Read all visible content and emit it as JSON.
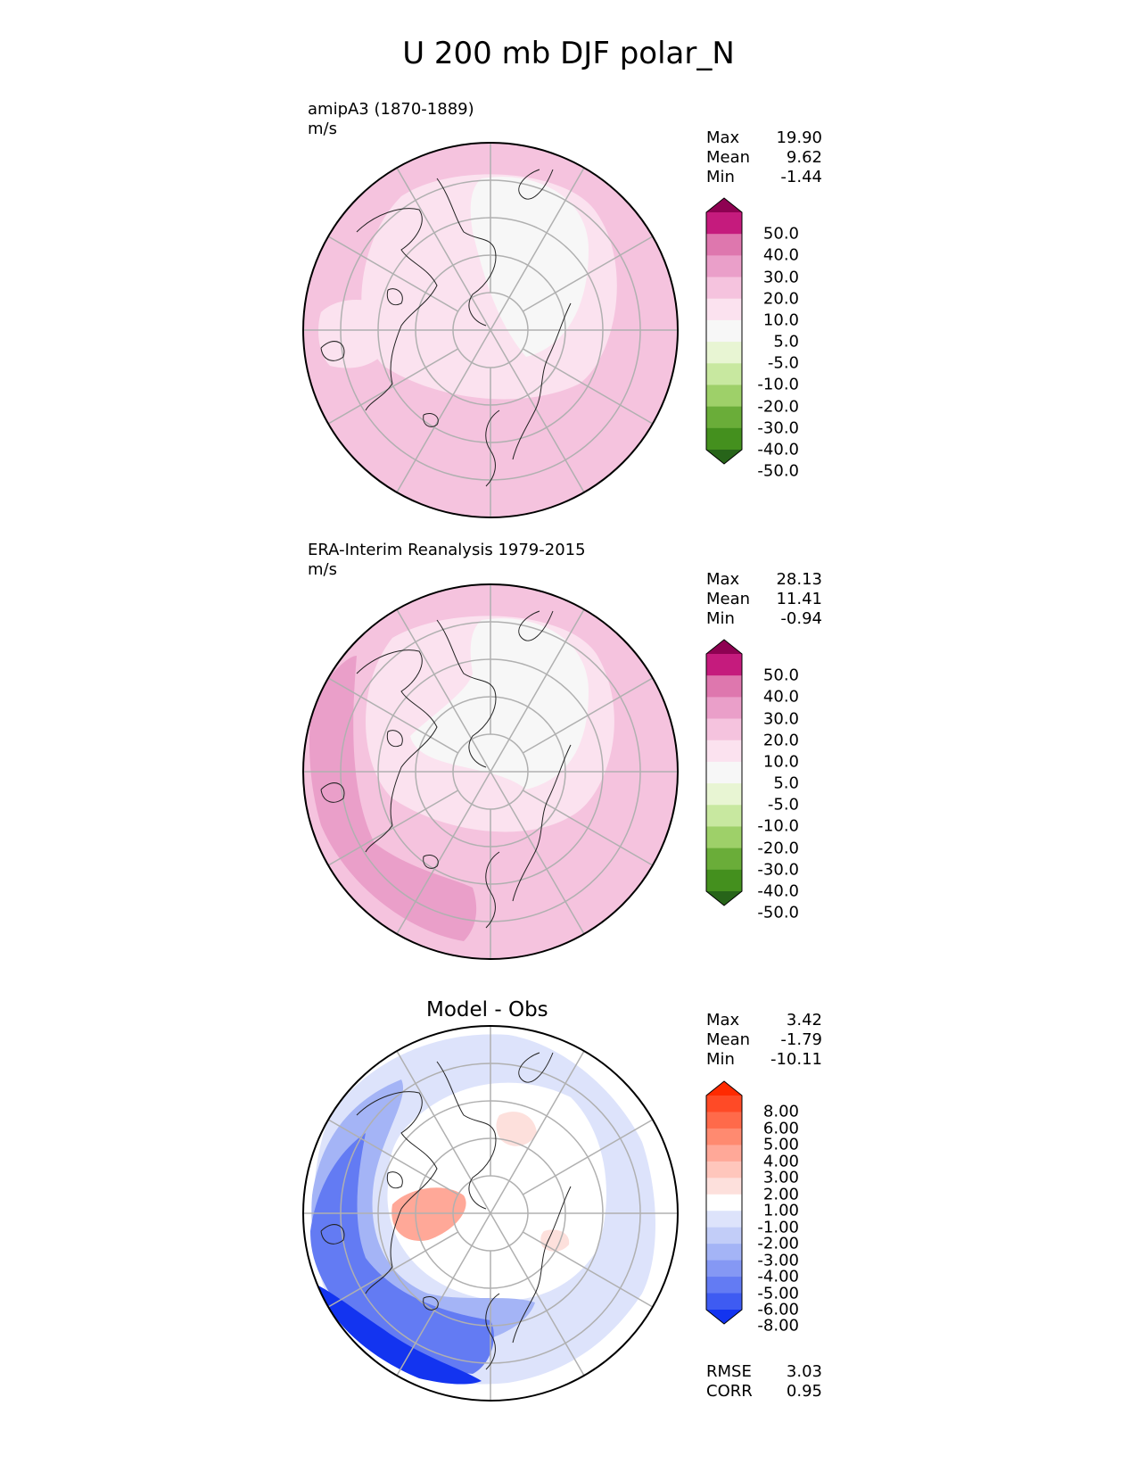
{
  "title": "U 200 mb DJF polar_N",
  "panels": [
    {
      "id": "model",
      "label": "amipA3 (1870-1889)",
      "units": "m/s",
      "center_title": "",
      "stats": [
        {
          "label": "Max",
          "value": "19.90"
        },
        {
          "label": "Mean",
          "value": "9.62"
        },
        {
          "label": "Min",
          "value": "-1.44"
        }
      ],
      "colorbar": {
        "labels": [
          "50.0",
          "40.0",
          "30.0",
          "20.0",
          "10.0",
          "5.0",
          "-5.0",
          "-10.0",
          "-20.0",
          "-30.0",
          "-40.0",
          "-50.0"
        ],
        "colors": [
          "#8e0152",
          "#c51b7d",
          "#de77ae",
          "#ea9fc9",
          "#f5c3de",
          "#fbe2ef",
          "#f7f7f7",
          "#e8f5d3",
          "#c8e8a0",
          "#9ed069",
          "#6aad39",
          "#44901e",
          "#276419"
        ]
      },
      "map_background": "#f5c3de"
    },
    {
      "id": "obs",
      "label": "ERA-Interim Reanalysis 1979-2015",
      "units": "m/s",
      "center_title": "",
      "stats": [
        {
          "label": "Max",
          "value": "28.13"
        },
        {
          "label": "Mean",
          "value": "11.41"
        },
        {
          "label": "Min",
          "value": "-0.94"
        }
      ],
      "colorbar": {
        "labels": [
          "50.0",
          "40.0",
          "30.0",
          "20.0",
          "10.0",
          "5.0",
          "-5.0",
          "-10.0",
          "-20.0",
          "-30.0",
          "-40.0",
          "-50.0"
        ],
        "colors": [
          "#8e0152",
          "#c51b7d",
          "#de77ae",
          "#ea9fc9",
          "#f5c3de",
          "#fbe2ef",
          "#f7f7f7",
          "#e8f5d3",
          "#c8e8a0",
          "#9ed069",
          "#6aad39",
          "#44901e",
          "#276419"
        ]
      },
      "map_background": "#f5c3de"
    },
    {
      "id": "diff",
      "label": "",
      "units": "",
      "center_title": "Model - Obs",
      "stats": [
        {
          "label": "Max",
          "value": "3.42"
        },
        {
          "label": "Mean",
          "value": "-1.79"
        },
        {
          "label": "Min",
          "value": "-10.11"
        }
      ],
      "colorbar": {
        "labels": [
          "8.00",
          "6.00",
          "5.00",
          "4.00",
          "3.00",
          "2.00",
          "1.00",
          "-1.00",
          "-2.00",
          "-3.00",
          "-4.00",
          "-5.00",
          "-6.00",
          "-8.00"
        ],
        "colors": [
          "#ff2a00",
          "#ff4a26",
          "#ff6a4a",
          "#ff8a70",
          "#ffa898",
          "#ffc6bc",
          "#fde0dc",
          "#ffffff",
          "#dde3fb",
          "#c2cdf8",
          "#a4b4f6",
          "#8598f4",
          "#637bf3",
          "#3e5bf2",
          "#1334f0"
        ]
      },
      "map_background": "#ffffff",
      "extra_stats": [
        {
          "label": "RMSE",
          "value": "3.03"
        },
        {
          "label": "CORR",
          "value": "0.95"
        }
      ]
    }
  ]
}
